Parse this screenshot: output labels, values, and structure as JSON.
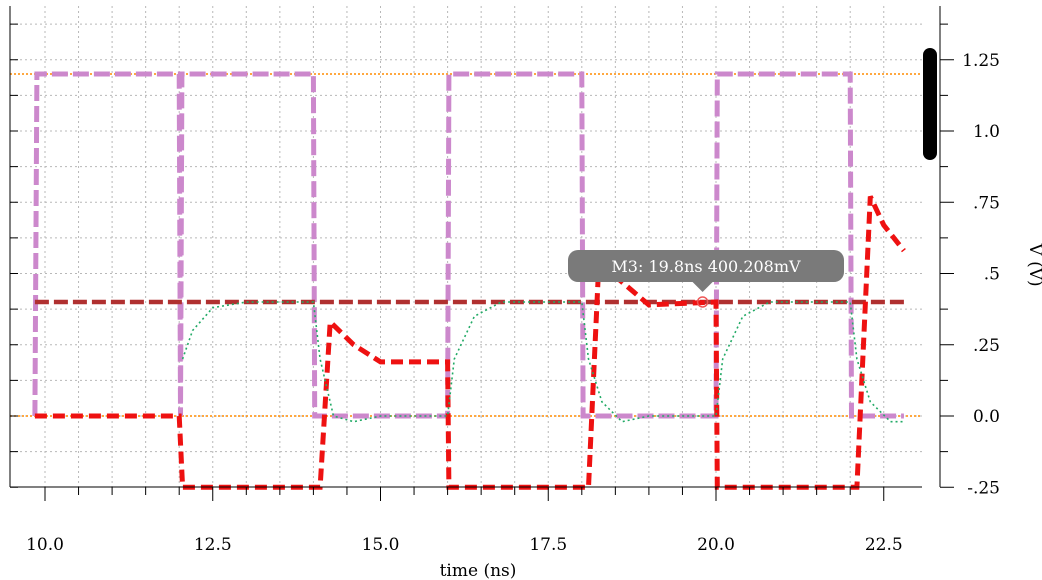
{
  "chart_data": {
    "type": "line",
    "xlabel": "time (ns)",
    "ylabel": "V (V)",
    "xlim": [
      9.8,
      22.9
    ],
    "ylim": [
      -0.25,
      1.45
    ],
    "x_ticks": [
      10.0,
      12.5,
      15.0,
      17.5,
      20.0,
      22.5
    ],
    "x_tick_labels": [
      "10.0",
      "12.5",
      "15.0",
      "17.5",
      "20.0",
      "22.5"
    ],
    "y_ticks": [
      -0.25,
      0.0,
      0.25,
      0.5,
      0.75,
      1.0,
      1.25
    ],
    "y_tick_labels": [
      "-.25",
      "0.0",
      ".25",
      ".5",
      ".75",
      "1.0",
      "1.25"
    ],
    "grid": true,
    "reference_lines": [
      {
        "y": 1.2,
        "color": "#ff8c00"
      },
      {
        "y": 0.0,
        "color": "#ff8c00"
      }
    ],
    "series": [
      {
        "color": "#cc88cc",
        "style": "dashed",
        "points": [
          [
            9.85,
            0
          ],
          [
            9.88,
            1.2
          ],
          [
            12.0,
            1.2
          ],
          [
            12.02,
            0
          ],
          [
            12.04,
            1.2
          ],
          [
            14.0,
            1.2
          ],
          [
            14.02,
            0
          ],
          [
            16.0,
            0
          ],
          [
            16.02,
            1.2
          ],
          [
            18.0,
            1.2
          ],
          [
            18.02,
            0
          ],
          [
            20.0,
            0
          ],
          [
            20.02,
            1.2
          ],
          [
            22.0,
            1.2
          ],
          [
            22.02,
            0
          ],
          [
            22.8,
            0
          ]
        ]
      },
      {
        "color": "#b03030",
        "style": "dashed",
        "points": [
          [
            9.85,
            0.4
          ],
          [
            22.8,
            0.4
          ]
        ]
      },
      {
        "color": "#ee1111",
        "style": "dashed",
        "points": [
          [
            9.85,
            0
          ],
          [
            12.0,
            0
          ],
          [
            12.05,
            -0.25
          ],
          [
            14.1,
            -0.25
          ],
          [
            14.25,
            0.33
          ],
          [
            14.6,
            0.25
          ],
          [
            15.0,
            0.19
          ],
          [
            16.0,
            0.19
          ],
          [
            16.02,
            -0.25
          ],
          [
            18.1,
            -0.25
          ],
          [
            18.25,
            0.52
          ],
          [
            18.55,
            0.48
          ],
          [
            19.0,
            0.39
          ],
          [
            20.0,
            0.4
          ],
          [
            20.02,
            -0.25
          ],
          [
            22.1,
            -0.25
          ],
          [
            22.3,
            0.77
          ],
          [
            22.5,
            0.67
          ],
          [
            22.8,
            0.58
          ]
        ]
      },
      {
        "color": "#22aa66",
        "style": "dotted",
        "points": [
          [
            12.05,
            0.2
          ],
          [
            12.2,
            0.3
          ],
          [
            12.5,
            0.38
          ],
          [
            13.0,
            0.4
          ],
          [
            14.0,
            0.4
          ],
          [
            14.1,
            0.2
          ],
          [
            14.3,
            0.0
          ],
          [
            14.6,
            -0.02
          ],
          [
            15.0,
            0.0
          ],
          [
            16.0,
            0.0
          ],
          [
            16.1,
            0.2
          ],
          [
            16.4,
            0.35
          ],
          [
            16.8,
            0.4
          ],
          [
            18.0,
            0.4
          ],
          [
            18.1,
            0.2
          ],
          [
            18.3,
            0.05
          ],
          [
            18.6,
            -0.02
          ],
          [
            19.0,
            0.0
          ],
          [
            20.0,
            0.0
          ],
          [
            20.1,
            0.2
          ],
          [
            20.4,
            0.35
          ],
          [
            20.8,
            0.4
          ],
          [
            22.0,
            0.4
          ],
          [
            22.1,
            0.2
          ],
          [
            22.3,
            0.05
          ],
          [
            22.6,
            -0.02
          ],
          [
            22.8,
            -0.02
          ]
        ]
      }
    ],
    "marker": {
      "label": "M3: 19.8ns 400.208mV",
      "x": 19.8,
      "y": 0.400208
    }
  },
  "colors": {
    "grid": "#b8b8b8",
    "tooltip_bg": "#7a7a7a",
    "scrollbar": "#000000"
  }
}
